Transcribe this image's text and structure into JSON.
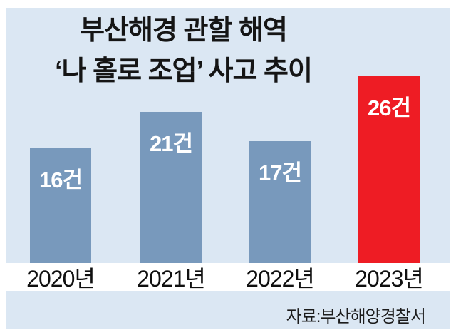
{
  "title": {
    "line1": "부산해경 관할 해역",
    "line2": "‘나 홀로 조업’ 사고 추이"
  },
  "source": "자료:부산해양경찰서",
  "chart_data": {
    "type": "bar",
    "title": "부산해경 관할 해역 ‘나 홀로 조업’ 사고 추이",
    "categories": [
      "2020년",
      "2021년",
      "2022년",
      "2023년"
    ],
    "values": [
      16,
      21,
      17,
      26
    ],
    "value_labels": [
      "16건",
      "21건",
      "17건",
      "26건"
    ],
    "unit": "건",
    "highlight_index": 3,
    "xlabel": "",
    "ylabel": "",
    "ylim": [
      0,
      26
    ],
    "grid": false,
    "legend": false,
    "colors": {
      "bar": "#7899bc",
      "highlight": "#ee1c24",
      "panel_bg": "#dbe7f3",
      "band_bg": "#ffffff",
      "value_text": "#ffffff",
      "axis_text": "#101010"
    }
  }
}
